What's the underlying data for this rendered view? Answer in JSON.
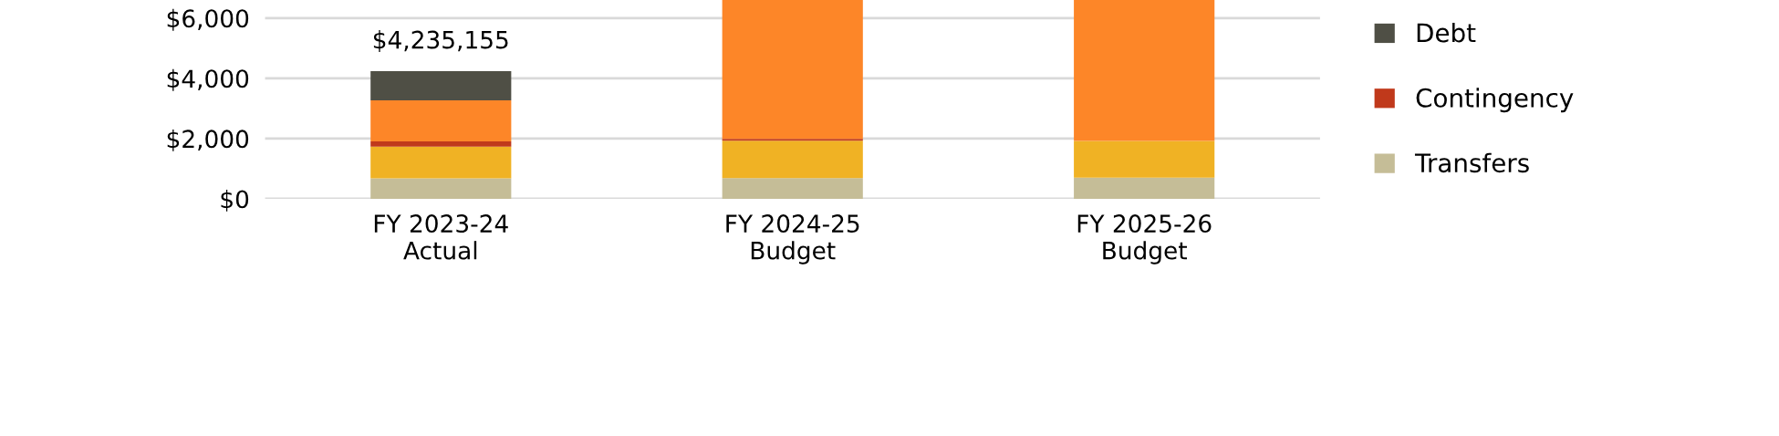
{
  "chart_data": {
    "type": "bar",
    "stacked": true,
    "categories": [
      "FY 2023-24\nActual",
      "FY 2024-25\nBudget",
      "FY 2025-26\nBudget"
    ],
    "series": [
      {
        "name": "Transfers",
        "color": "#c5bd97",
        "values": [
          680,
          690,
          700
        ]
      },
      {
        "color": "#f0b224",
        "values": [
          1050,
          1240,
          1220
        ]
      },
      {
        "name": "Contingency",
        "color": "#c0391b",
        "values": [
          180,
          60,
          0
        ]
      },
      {
        "color": "#fd8628",
        "values": [
          1360,
          4610,
          4680
        ]
      },
      {
        "name": "Debt",
        "color": "#4f4f45",
        "values": [
          970,
          null,
          null
        ]
      }
    ],
    "ylim": [
      0,
      6600
    ],
    "yticks": [
      {
        "value": 0,
        "label": "$0"
      },
      {
        "value": 2000,
        "label": "$2,000"
      },
      {
        "value": 4000,
        "label": "$4,000"
      },
      {
        "value": 6000,
        "label": "$6,000"
      }
    ],
    "annotations": [
      {
        "text": "$4,235,155",
        "x": "FY 2023-24\nActual",
        "y": 4235
      }
    ],
    "grid": "y",
    "legend": "right"
  }
}
